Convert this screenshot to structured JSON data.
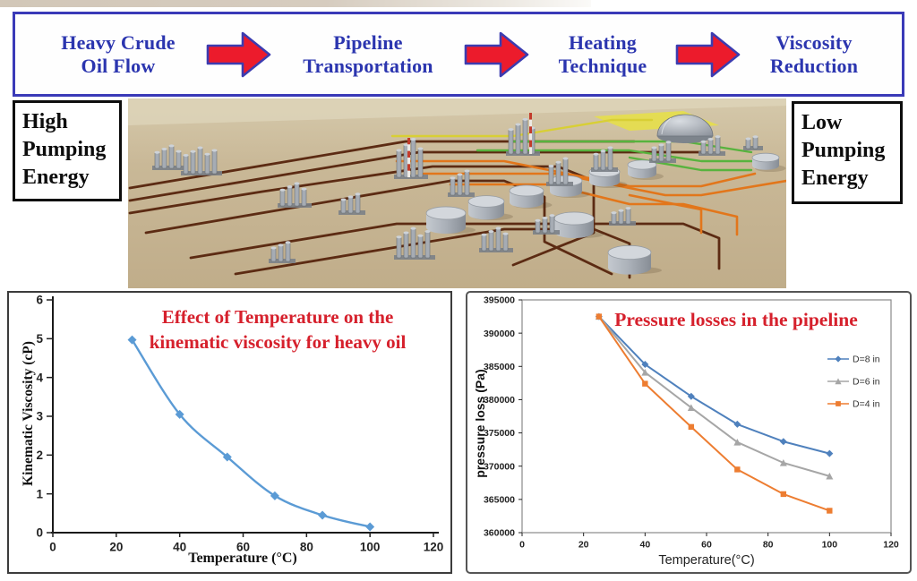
{
  "banner": {
    "steps": [
      "Heavy Crude\nOil Flow",
      "Pipeline\nTransportation",
      "Heating\nTechnique",
      "Viscosity\nReduction"
    ],
    "arrow_color": "#ec1b2c",
    "border_color": "#3a3ab8",
    "text_color": "#2b35af"
  },
  "side_boxes": {
    "left": "High\nPumping\nEnergy",
    "right": "Low\nPumping\nEnergy"
  },
  "plant_image": {
    "description": "3D refinery complex on sand with towers, storage tanks, dome and colored pipelines",
    "pipe_colors": {
      "brown": "#5c2b13",
      "orange": "#e2761b",
      "green": "#58b33e",
      "yellow": "#d8cf35"
    },
    "ground_color": "#c8b796"
  },
  "chart_data": [
    {
      "type": "line",
      "title": "Effect of  Temperature  on the\nkinematic viscosity for heavy oil",
      "title_color": "#d6202c",
      "xlabel": "Temperature (°C)",
      "ylabel": "Kinematic Viscosity (cP)",
      "x": [
        25,
        40,
        55,
        70,
        85,
        100
      ],
      "series": [
        {
          "name": "kinematic viscosity",
          "color": "#5b9bd5",
          "marker": "diamond",
          "values": [
            4.97,
            3.05,
            1.95,
            0.95,
            0.45,
            0.15
          ]
        }
      ],
      "xlim": [
        0,
        120
      ],
      "ylim": [
        0,
        6
      ],
      "xticks": [
        0,
        20,
        40,
        60,
        80,
        100,
        120
      ],
      "yticks": [
        0,
        1,
        2,
        3,
        4,
        5,
        6
      ],
      "grid": false,
      "smooth": true,
      "legend": false
    },
    {
      "type": "line",
      "title": "Pressure losses in the pipeline",
      "title_color": "#d6202c",
      "xlabel": "Temperature(°C)",
      "ylabel": "pressure loss (Pa)",
      "x": [
        25,
        40,
        55,
        70,
        85,
        100
      ],
      "series": [
        {
          "name": "D=8 in",
          "color": "#4f81bd",
          "marker": "diamond",
          "values": [
            392500,
            385300,
            380500,
            376300,
            373700,
            371900
          ]
        },
        {
          "name": "D=6 in",
          "color": "#a6a6a6",
          "marker": "triangle",
          "values": [
            392500,
            384100,
            378800,
            373600,
            370500,
            368500
          ]
        },
        {
          "name": "D=4 in",
          "color": "#ed7d31",
          "marker": "square",
          "values": [
            392500,
            382400,
            375900,
            369500,
            365800,
            363300
          ]
        }
      ],
      "xlim": [
        0,
        120
      ],
      "ylim": [
        360000,
        395000
      ],
      "xticks": [
        0,
        20,
        40,
        60,
        80,
        100,
        120
      ],
      "yticks": [
        360000,
        365000,
        370000,
        375000,
        380000,
        385000,
        390000,
        395000
      ],
      "grid": false,
      "smooth": false,
      "legend": true,
      "legend_position": "upper-right"
    }
  ]
}
